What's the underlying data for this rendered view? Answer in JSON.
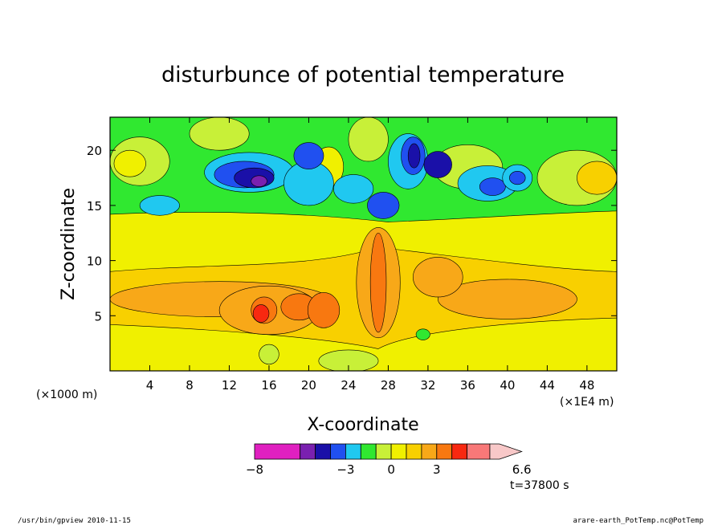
{
  "chart_data": {
    "type": "heatmap",
    "title": "disturbunce of potential temperature",
    "xlabel": "X-coordinate",
    "ylabel": "Z-coordinate",
    "x_unit_left": "(×1000 m)",
    "x_unit_right": "(×1E4 m)",
    "xlim": [
      0,
      51
    ],
    "ylim": [
      0,
      23
    ],
    "x_ticks": [
      "4",
      "8",
      "12",
      "16",
      "20",
      "24",
      "28",
      "32",
      "36",
      "40",
      "44",
      "48"
    ],
    "x_tick_values": [
      4,
      8,
      12,
      16,
      20,
      24,
      28,
      32,
      36,
      40,
      44,
      48
    ],
    "y_ticks": [
      "5",
      "10",
      "15",
      "20"
    ],
    "y_tick_values": [
      5,
      10,
      15,
      20
    ],
    "colorbar": {
      "labels": [
        "−8",
        "−3",
        "0",
        "3",
        "6.6"
      ],
      "label_values": [
        -8,
        -3,
        0,
        3,
        6.6
      ],
      "levels": [
        -8,
        -6,
        -5,
        -4,
        -3,
        -2,
        -1,
        0,
        1,
        2,
        3,
        4,
        5,
        6,
        6.6
      ],
      "colors": [
        "#e020c0",
        "#7a20b0",
        "#1a10a8",
        "#2050f0",
        "#20c8f0",
        "#30e830",
        "#c8f038",
        "#f0f000",
        "#f8d000",
        "#f8a818",
        "#f87810",
        "#f82810",
        "#f87878",
        "#f8c8c8"
      ]
    },
    "annotation": "t=37800 s",
    "grid": false
  },
  "footer": {
    "left": "/usr/bin/gpview  2010-11-15",
    "right": "arare-earth_PotTemp.nc@PotTemp"
  },
  "colors": {
    "background": "#ffffff",
    "frame": "#000000"
  }
}
